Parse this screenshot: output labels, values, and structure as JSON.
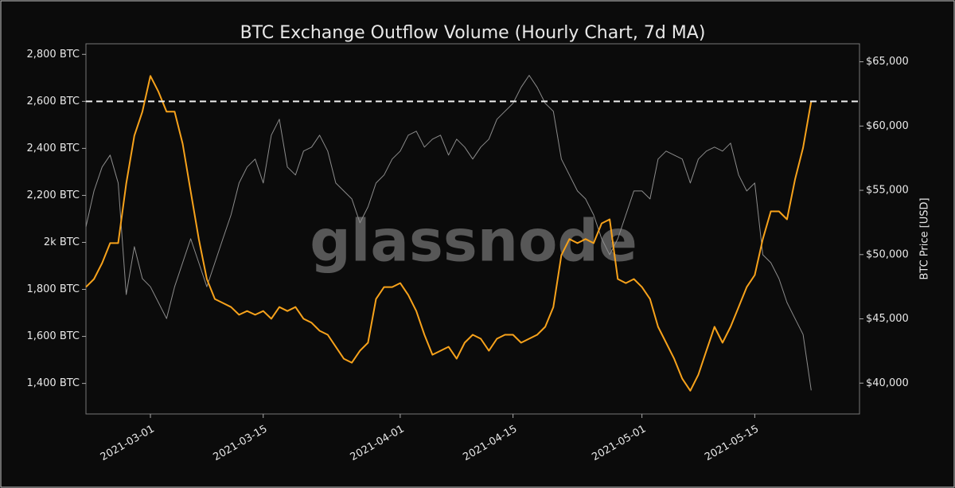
{
  "chart_data": {
    "type": "line",
    "title": "BTC Exchange Outflow Volume (Hourly Chart, 7d MA)",
    "y2label": "BTC Price [USD]",
    "watermark": "glassnode",
    "x": [
      "2021-02-21",
      "2021-02-22",
      "2021-02-23",
      "2021-02-24",
      "2021-02-25",
      "2021-02-26",
      "2021-02-27",
      "2021-02-28",
      "2021-03-01",
      "2021-03-02",
      "2021-03-03",
      "2021-03-04",
      "2021-03-05",
      "2021-03-06",
      "2021-03-07",
      "2021-03-08",
      "2021-03-09",
      "2021-03-10",
      "2021-03-11",
      "2021-03-12",
      "2021-03-13",
      "2021-03-14",
      "2021-03-15",
      "2021-03-16",
      "2021-03-17",
      "2021-03-18",
      "2021-03-19",
      "2021-03-20",
      "2021-03-21",
      "2021-03-22",
      "2021-03-23",
      "2021-03-24",
      "2021-03-25",
      "2021-03-26",
      "2021-03-27",
      "2021-03-28",
      "2021-03-29",
      "2021-03-30",
      "2021-03-31",
      "2021-04-01",
      "2021-04-02",
      "2021-04-03",
      "2021-04-04",
      "2021-04-05",
      "2021-04-06",
      "2021-04-07",
      "2021-04-08",
      "2021-04-09",
      "2021-04-10",
      "2021-04-11",
      "2021-04-12",
      "2021-04-13",
      "2021-04-14",
      "2021-04-15",
      "2021-04-16",
      "2021-04-17",
      "2021-04-18",
      "2021-04-19",
      "2021-04-20",
      "2021-04-21",
      "2021-04-22",
      "2021-04-23",
      "2021-04-24",
      "2021-04-25",
      "2021-04-26",
      "2021-04-27",
      "2021-04-28",
      "2021-04-29",
      "2021-04-30",
      "2021-05-01",
      "2021-05-02",
      "2021-05-03",
      "2021-05-04",
      "2021-05-05",
      "2021-05-06",
      "2021-05-07",
      "2021-05-08",
      "2021-05-09",
      "2021-05-10",
      "2021-05-11",
      "2021-05-12",
      "2021-05-13",
      "2021-05-14",
      "2021-05-15",
      "2021-05-16",
      "2021-05-17",
      "2021-05-18",
      "2021-05-19",
      "2021-05-20",
      "2021-05-21",
      "2021-05-22"
    ],
    "xlim": [
      "2021-02-21",
      "2021-05-28"
    ],
    "xticks": [
      "2021-03-01",
      "2021-03-15",
      "2021-04-01",
      "2021-04-15",
      "2021-05-01",
      "2021-05-15"
    ],
    "ylim": [
      1270,
      2845
    ],
    "yticks": [
      {
        "value": 1400,
        "label": "1,400 BTC"
      },
      {
        "value": 1600,
        "label": "1,600 BTC"
      },
      {
        "value": 1800,
        "label": "1,800 BTC"
      },
      {
        "value": 2000,
        "label": "2k BTC"
      },
      {
        "value": 2200,
        "label": "2,200 BTC"
      },
      {
        "value": 2400,
        "label": "2,400 BTC"
      },
      {
        "value": 2600,
        "label": "2,600 BTC"
      },
      {
        "value": 2800,
        "label": "2,800 BTC"
      }
    ],
    "y2lim": [
      37600,
      66400
    ],
    "y2ticks": [
      {
        "value": 40000,
        "label": "$40,000"
      },
      {
        "value": 45000,
        "label": "$45,000"
      },
      {
        "value": 50000,
        "label": "$50,000"
      },
      {
        "value": 55000,
        "label": "$55,000"
      },
      {
        "value": 60000,
        "label": "$60,000"
      },
      {
        "value": 65000,
        "label": "$65,000"
      }
    ],
    "hline": 2600,
    "series": [
      {
        "color": "#f7a21b",
        "values": [
          1810,
          1844,
          1912,
          1997,
          1997,
          2250,
          2454,
          2556,
          2708,
          2641,
          2556,
          2556,
          2420,
          2217,
          2014,
          1844,
          1759,
          1742,
          1725,
          1692,
          1708,
          1692,
          1708,
          1675,
          1725,
          1708,
          1725,
          1675,
          1658,
          1624,
          1607,
          1556,
          1505,
          1488,
          1539,
          1573,
          1759,
          1810,
          1810,
          1827,
          1776,
          1708,
          1607,
          1522,
          1539,
          1556,
          1505,
          1573,
          1607,
          1590,
          1539,
          1590,
          1607,
          1607,
          1573,
          1590,
          1607,
          1641,
          1725,
          1946,
          2014,
          1997,
          2014,
          1997,
          2081,
          2098,
          1844,
          1827,
          1844,
          1810,
          1759,
          1641,
          1573,
          1505,
          1420,
          1369,
          1437,
          1539,
          1641,
          1573,
          1641,
          1725,
          1810,
          1861,
          2014,
          2132,
          2132,
          2098,
          2268,
          2403,
          2600
        ]
      },
      {
        "color": "#8c8c8c",
        "axis": "y2",
        "values": [
          52160,
          54950,
          56810,
          57740,
          55570,
          46890,
          50610,
          48130,
          47500,
          46270,
          45020,
          47500,
          49370,
          51230,
          49370,
          47500,
          49370,
          51230,
          53090,
          55570,
          56810,
          57430,
          55570,
          59290,
          60530,
          56810,
          56190,
          58050,
          58360,
          59290,
          58050,
          55570,
          54950,
          54330,
          52470,
          53710,
          55570,
          56190,
          57430,
          58050,
          59290,
          59600,
          58360,
          58980,
          59290,
          57740,
          58980,
          58360,
          57430,
          58360,
          58980,
          60530,
          61150,
          61770,
          63010,
          63950,
          63010,
          61770,
          61150,
          57430,
          56190,
          54950,
          54330,
          53090,
          51230,
          49990,
          51230,
          53090,
          54950,
          54950,
          54330,
          57430,
          58050,
          57740,
          57430,
          55570,
          57430,
          58050,
          58360,
          58050,
          58670,
          56190,
          54950,
          55570,
          49990,
          49370,
          48130,
          46270,
          45020,
          43780,
          39440
        ]
      }
    ]
  }
}
